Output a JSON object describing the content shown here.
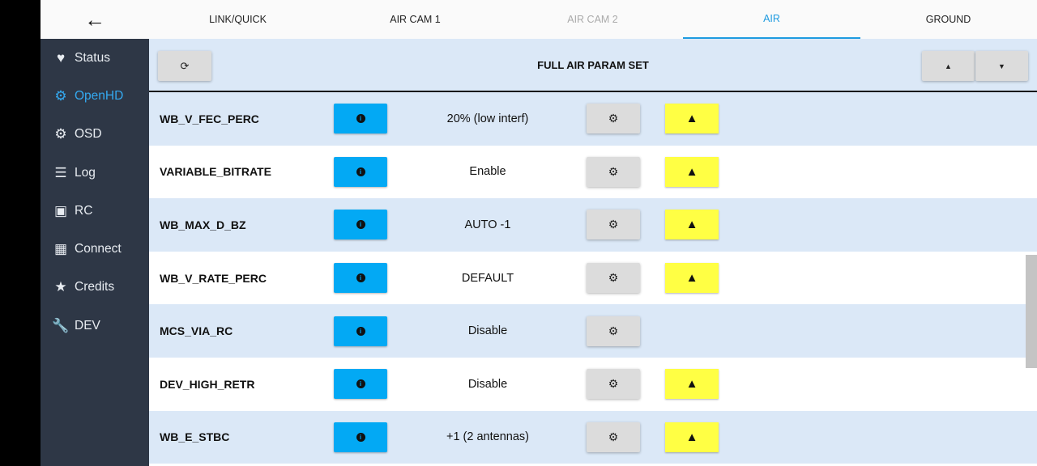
{
  "header": {
    "back_icon": "arrow-left-icon",
    "tabs": [
      {
        "label": "LINK/QUICK",
        "state": "normal"
      },
      {
        "label": "AIR CAM 1",
        "state": "normal"
      },
      {
        "label": "AIR CAM 2",
        "state": "disabled"
      },
      {
        "label": "AIR",
        "state": "active"
      },
      {
        "label": "GROUND",
        "state": "normal"
      }
    ]
  },
  "sidebar": {
    "items": [
      {
        "label": "Status",
        "icon": "heartbeat-icon"
      },
      {
        "label": "OpenHD",
        "icon": "cogs-icon",
        "active": true
      },
      {
        "label": "OSD",
        "icon": "gear-icon"
      },
      {
        "label": "Log",
        "icon": "list-icon"
      },
      {
        "label": "RC",
        "icon": "gamepad-icon"
      },
      {
        "label": "Connect",
        "icon": "network-icon"
      },
      {
        "label": "Credits",
        "icon": "star-icon"
      },
      {
        "label": "DEV",
        "icon": "wrench-icon"
      }
    ]
  },
  "toolbar": {
    "title": "FULL AIR PARAM SET",
    "refresh_icon": "refresh-icon",
    "up_icon": "caret-up-icon",
    "down_icon": "caret-down-icon"
  },
  "params": [
    {
      "name": "WB_V_FEC_PERC",
      "value": "20% (low interf)",
      "warning": true
    },
    {
      "name": "VARIABLE_BITRATE",
      "value": "Enable",
      "warning": true
    },
    {
      "name": "WB_MAX_D_BZ",
      "value": "AUTO -1",
      "warning": true
    },
    {
      "name": "WB_V_RATE_PERC",
      "value": "DEFAULT",
      "warning": true
    },
    {
      "name": "MCS_VIA_RC",
      "value": "Disable",
      "warning": false
    },
    {
      "name": "DEV_HIGH_RETR",
      "value": "Disable",
      "warning": true
    },
    {
      "name": "WB_E_STBC",
      "value": "+1 (2 antennas)",
      "warning": true
    }
  ],
  "colors": {
    "accent": "#03a9f4",
    "warning": "#ffff44",
    "sidebar": "#2e3746",
    "row_alt": "#dbe8f7"
  }
}
